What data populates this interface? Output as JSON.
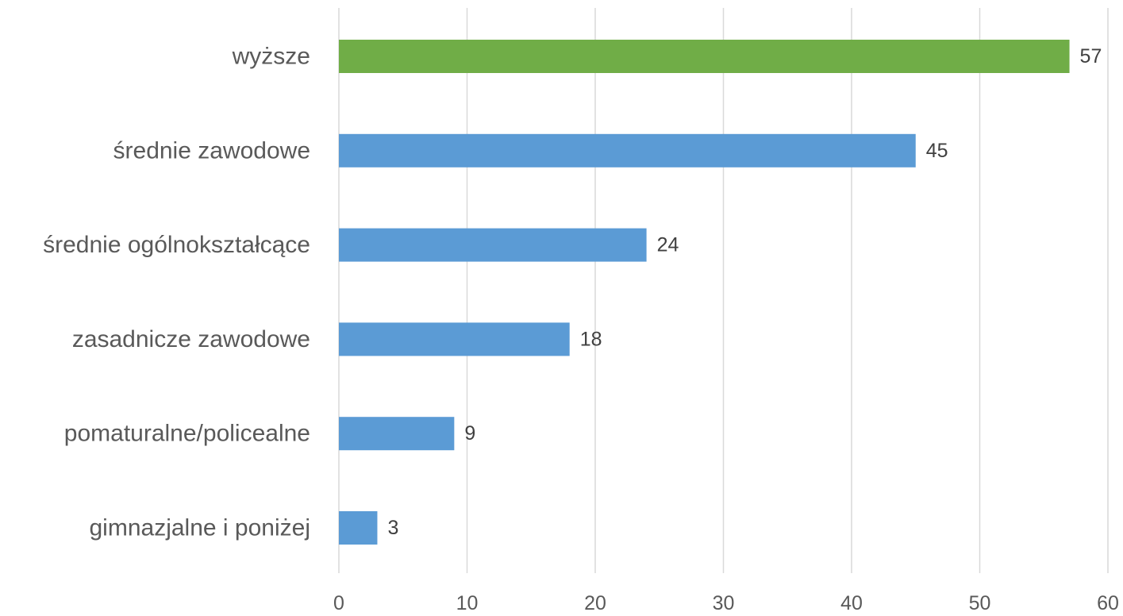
{
  "chart_data": {
    "type": "bar",
    "orientation": "horizontal",
    "title": "",
    "xlabel": "",
    "ylabel": "",
    "categories": [
      "wyższe",
      "średnie zawodowe",
      "średnie ogólnokształcące",
      "zasadnicze zawodowe",
      "pomaturalne/policealne",
      "gimnazjalne i poniżej"
    ],
    "values": [
      57,
      45,
      24,
      18,
      9,
      3
    ],
    "bar_colors": [
      "#70ad47",
      "#5b9bd5",
      "#5b9bd5",
      "#5b9bd5",
      "#5b9bd5",
      "#5b9bd5"
    ],
    "xlim": [
      0,
      60
    ],
    "x_ticks": [
      0,
      10,
      20,
      30,
      40,
      50,
      60
    ],
    "grid": "vertical",
    "legend": "none",
    "colors": {
      "highlight": "#70ad47",
      "default": "#5b9bd5",
      "gridline": "#d9d9d9"
    }
  }
}
